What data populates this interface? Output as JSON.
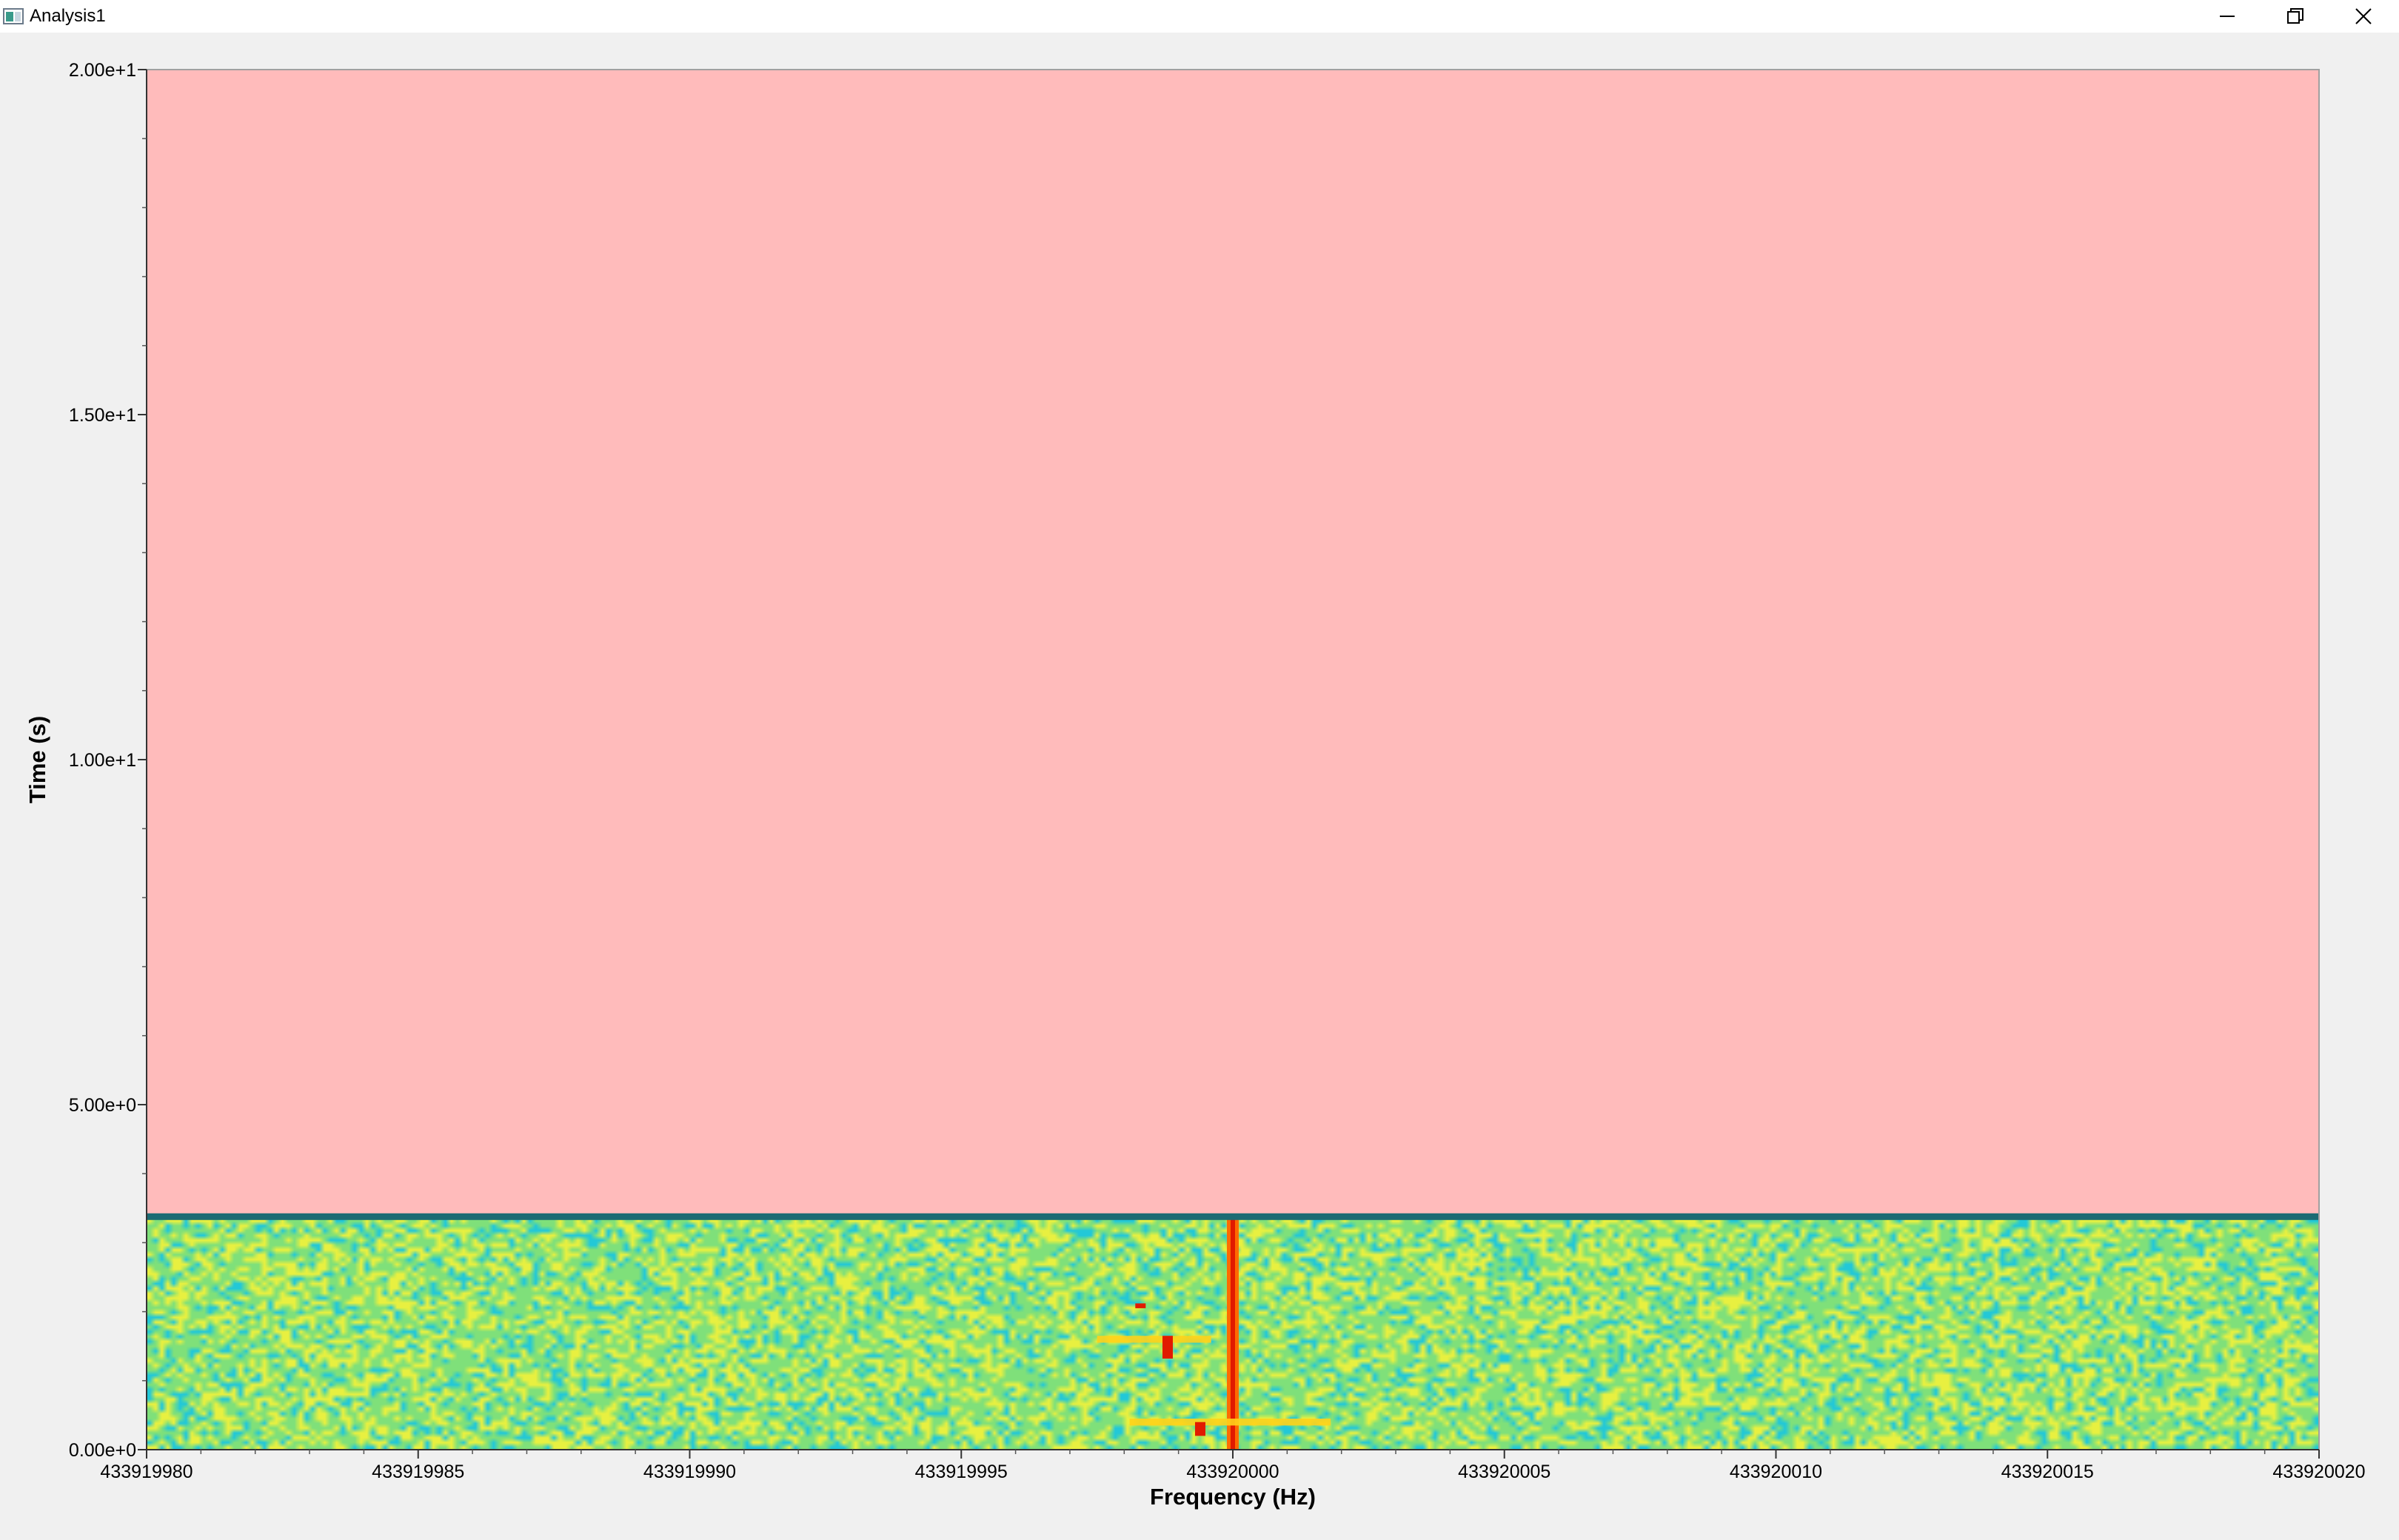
{
  "window": {
    "title": "Analysis1",
    "controls": [
      "minimize-icon",
      "restore-icon",
      "close-icon"
    ]
  },
  "chart_data": {
    "type": "heatmap",
    "xlabel": "Frequency (Hz)",
    "ylabel": "Time (s)",
    "xlim": [
      433919980,
      433920020
    ],
    "ylim": [
      0,
      20
    ],
    "x_ticks": [
      "433919980",
      "433919985",
      "433919990",
      "433919995",
      "433920000",
      "433920005",
      "433920010",
      "433920015",
      "433920020"
    ],
    "y_ticks": [
      "0.00e+0",
      "5.00e+0",
      "1.00e+1",
      "1.50e+1",
      "2.00e+1"
    ],
    "y_tick_values": [
      0,
      5,
      10,
      15,
      20
    ],
    "data_time_extent": [
      0,
      3.35
    ],
    "empty_region_color": "#ffbbbb",
    "separator_color": "#1c6b73",
    "colormap": [
      "#22c8d8",
      "#7fe07a",
      "#e8f040",
      "#ffd21a",
      "#ff6a00",
      "#e11a00"
    ],
    "features": [
      {
        "kind": "carrier",
        "freq": 433920000,
        "t_start": 0,
        "t_end": 3.35
      },
      {
        "kind": "burst",
        "freq_start": 433919997.5,
        "freq_end": 433919999.6,
        "t_start": 1.55,
        "t_end": 1.65
      },
      {
        "kind": "burst",
        "freq_start": 433919998.1,
        "freq_end": 433920001.8,
        "t_start": 0.35,
        "t_end": 0.45
      },
      {
        "kind": "spot",
        "freq": 433919998.3,
        "t_start": 2.05,
        "t_end": 2.12
      },
      {
        "kind": "spot",
        "freq": 433919998.8,
        "t_start": 1.32,
        "t_end": 1.65
      },
      {
        "kind": "spot",
        "freq": 433919999.4,
        "t_start": 0.2,
        "t_end": 0.4
      }
    ]
  }
}
